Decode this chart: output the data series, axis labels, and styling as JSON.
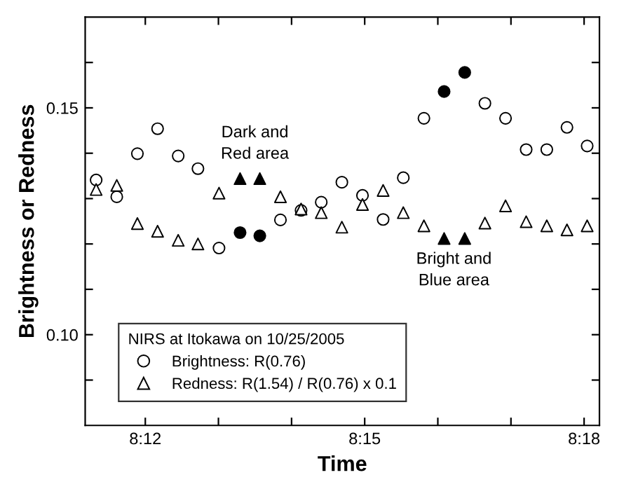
{
  "chart_data": {
    "type": "scatter",
    "xlabel": "Time",
    "ylabel": "Brightness or Redness",
    "legend_title": "NIRS at Itokawa on 10/25/2005",
    "legend": "bottom left",
    "grid": false,
    "x": [
      8.1888,
      8.1935,
      8.1982,
      8.2028,
      8.2075,
      8.212,
      8.2168,
      8.2216,
      8.2261,
      8.2308,
      8.2355,
      8.2401,
      8.2448,
      8.2495,
      8.2542,
      8.2588,
      8.2635,
      8.2681,
      8.2728,
      8.2774,
      8.2821,
      8.2868,
      8.2915,
      8.2961,
      8.3007
    ],
    "series": [
      {
        "name": "Brightness: R(0.76)",
        "marker": "circle",
        "color": "#000000",
        "colors": [
          "#ffffff",
          "#ffffff",
          "#ffffff",
          "#ffffff",
          "#ffffff",
          "#ffffff",
          "#ffffff",
          "#000000",
          "#000000",
          "#ffffff",
          "#ffffff",
          "#ffffff",
          "#ffffff",
          "#ffffff",
          "#ffffff",
          "#ffffff",
          "#ffffff",
          "#000000",
          "#000000",
          "#ffffff",
          "#ffffff",
          "#ffffff",
          "#ffffff",
          "#ffffff",
          "#ffffff"
        ],
        "values": [
          0.1341,
          0.1304,
          0.1399,
          0.1454,
          0.1394,
          0.1366,
          0.1191,
          0.1225,
          0.1218,
          0.1253,
          0.1274,
          0.1292,
          0.1336,
          0.1307,
          0.1254,
          0.1346,
          0.1477,
          0.1536,
          0.1578,
          0.151,
          0.1477,
          0.1408,
          0.1408,
          0.1457,
          0.1416
        ]
      },
      {
        "name": "Redness: R(1.54) / R(0.76) x 0.1",
        "marker": "triangle",
        "color": "#000000",
        "colors": [
          "#ffffff",
          "#ffffff",
          "#ffffff",
          "#ffffff",
          "#ffffff",
          "#ffffff",
          "#ffffff",
          "#000000",
          "#000000",
          "#ffffff",
          "#ffffff",
          "#ffffff",
          "#ffffff",
          "#ffffff",
          "#ffffff",
          "#ffffff",
          "#ffffff",
          "#000000",
          "#000000",
          "#ffffff",
          "#ffffff",
          "#ffffff",
          "#ffffff",
          "#ffffff",
          "#ffffff"
        ],
        "values": [
          0.132,
          0.1329,
          0.1245,
          0.1228,
          0.1208,
          0.12,
          0.1312,
          0.1344,
          0.1344,
          0.1304,
          0.1277,
          0.1269,
          0.1237,
          0.1287,
          0.1318,
          0.1269,
          0.124,
          0.1212,
          0.1212,
          0.1246,
          0.1284,
          0.1249,
          0.124,
          0.1231,
          0.124
        ]
      }
    ],
    "annotations": [
      "Dark and\nRed area",
      "Bright and\nBlue area"
    ],
    "xlim": [
      8.1863,
      8.3035
    ],
    "ylim": [
      0.08,
      0.17
    ],
    "xticks": [
      {
        "value": 8.2,
        "label": "8:12"
      },
      {
        "value": 8.216667,
        "label": null
      },
      {
        "value": 8.233333,
        "label": null
      },
      {
        "value": 8.25,
        "label": "8:15"
      },
      {
        "value": 8.266667,
        "label": null
      },
      {
        "value": 8.283333,
        "label": null
      },
      {
        "value": 8.3,
        "label": "8:18"
      }
    ],
    "yticks": [
      {
        "value": 0.09,
        "label": null
      },
      {
        "value": 0.1,
        "label": "0.10"
      },
      {
        "value": 0.11,
        "label": null
      },
      {
        "value": 0.12,
        "label": null
      },
      {
        "value": 0.13,
        "label": null
      },
      {
        "value": 0.14,
        "label": null
      },
      {
        "value": 0.15,
        "label": "0.15"
      },
      {
        "value": 0.16,
        "label": null
      }
    ]
  }
}
